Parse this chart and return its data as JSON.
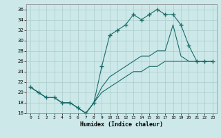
{
  "title": "",
  "xlabel": "Humidex (Indice chaleur)",
  "bg_color": "#cce8e8",
  "grid_color": "#aacccc",
  "line_color": "#1a6b6b",
  "xlim": [
    -0.5,
    23.5
  ],
  "ylim": [
    16,
    37
  ],
  "xticks": [
    0,
    1,
    2,
    3,
    4,
    5,
    6,
    7,
    8,
    9,
    10,
    11,
    12,
    13,
    14,
    15,
    16,
    17,
    18,
    19,
    20,
    21,
    22,
    23
  ],
  "yticks": [
    16,
    18,
    20,
    22,
    24,
    26,
    28,
    30,
    32,
    34,
    36
  ],
  "series": [
    {
      "x": [
        0,
        1,
        2,
        3,
        4,
        5,
        6,
        7,
        8,
        9,
        10,
        11,
        12,
        13,
        14,
        15,
        16,
        17,
        18,
        19,
        20,
        21,
        22,
        23
      ],
      "y": [
        21,
        20,
        19,
        19,
        18,
        18,
        17,
        16,
        18,
        25,
        31,
        32,
        33,
        35,
        34,
        35,
        36,
        35,
        35,
        33,
        29,
        26,
        26,
        26
      ],
      "marker": "+"
    },
    {
      "x": [
        0,
        1,
        2,
        3,
        4,
        5,
        6,
        7,
        8,
        9,
        10,
        11,
        12,
        13,
        14,
        15,
        16,
        17,
        18,
        19,
        20,
        21,
        22,
        23
      ],
      "y": [
        21,
        20,
        19,
        19,
        18,
        18,
        17,
        16,
        18,
        21,
        23,
        24,
        25,
        26,
        27,
        27,
        28,
        28,
        33,
        27,
        26,
        26,
        26,
        26
      ],
      "marker": null
    },
    {
      "x": [
        0,
        1,
        2,
        3,
        4,
        5,
        6,
        7,
        8,
        9,
        10,
        11,
        12,
        13,
        14,
        15,
        16,
        17,
        18,
        19,
        20,
        21,
        22,
        23
      ],
      "y": [
        21,
        20,
        19,
        19,
        18,
        18,
        17,
        16,
        18,
        20,
        21,
        22,
        23,
        24,
        24,
        25,
        25,
        26,
        26,
        26,
        26,
        26,
        26,
        26
      ],
      "marker": null
    }
  ]
}
